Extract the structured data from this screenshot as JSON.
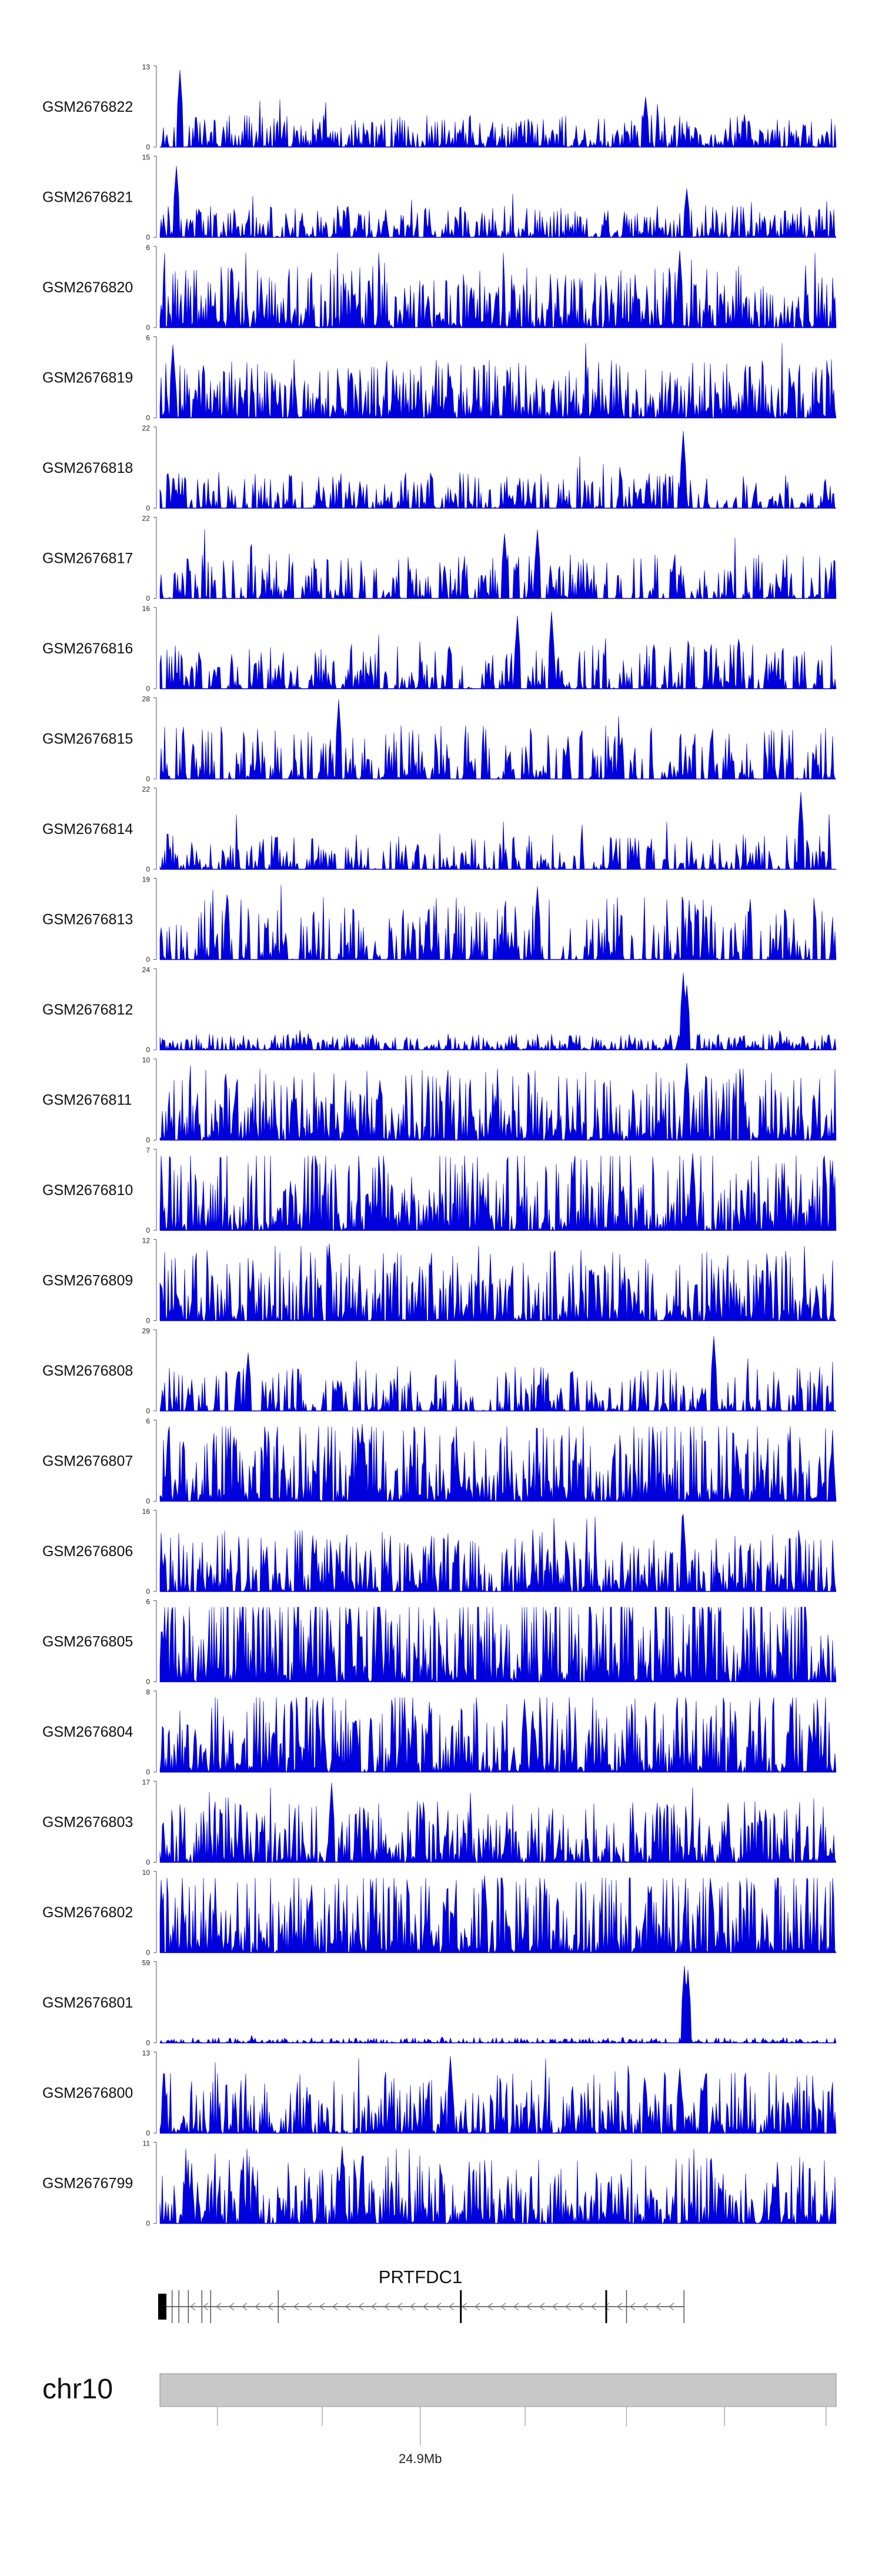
{
  "chart_data": {
    "type": "area",
    "series_color": "#0000dd",
    "tracks": [
      {
        "name": "GSM2676822",
        "ymax": 13,
        "ymin": 0,
        "peaks": [
          [
            0.03,
            0.95
          ],
          [
            0.72,
            0.62
          ]
        ],
        "sparsity": 0.15,
        "base": 0.18
      },
      {
        "name": "GSM2676821",
        "ymax": 15,
        "ymin": 0,
        "peaks": [
          [
            0.025,
            0.88
          ],
          [
            0.78,
            0.6
          ]
        ],
        "sparsity": 0.15,
        "base": 0.18
      },
      {
        "name": "GSM2676820",
        "ymax": 6,
        "ymin": 0,
        "peaks": [
          [
            0.77,
            0.95
          ]
        ],
        "sparsity": 0.0,
        "base": 0.35
      },
      {
        "name": "GSM2676819",
        "ymax": 6,
        "ymin": 0,
        "peaks": [
          [
            0.02,
            0.9
          ]
        ],
        "sparsity": 0.0,
        "base": 0.33
      },
      {
        "name": "GSM2676818",
        "ymax": 22,
        "ymin": 0,
        "peaks": [
          [
            0.776,
            0.95
          ]
        ],
        "sparsity": 0.45,
        "base": 0.2
      },
      {
        "name": "GSM2676817",
        "ymax": 22,
        "ymin": 0,
        "peaks": [
          [
            0.51,
            0.8
          ],
          [
            0.56,
            0.85
          ]
        ],
        "sparsity": 0.55,
        "base": 0.25
      },
      {
        "name": "GSM2676816",
        "ymax": 16,
        "ymin": 0,
        "peaks": [
          [
            0.53,
            0.9
          ],
          [
            0.58,
            0.95
          ]
        ],
        "sparsity": 0.45,
        "base": 0.25
      },
      {
        "name": "GSM2676815",
        "ymax": 28,
        "ymin": 0,
        "peaks": [
          [
            0.265,
            0.98
          ]
        ],
        "sparsity": 0.5,
        "base": 0.3
      },
      {
        "name": "GSM2676814",
        "ymax": 22,
        "ymin": 0,
        "peaks": [
          [
            0.95,
            0.95
          ]
        ],
        "sparsity": 0.45,
        "base": 0.2
      },
      {
        "name": "GSM2676813",
        "ymax": 19,
        "ymin": 0,
        "peaks": [
          [
            0.56,
            0.9
          ],
          [
            0.1,
            0.78
          ]
        ],
        "sparsity": 0.5,
        "base": 0.35
      },
      {
        "name": "GSM2676812",
        "ymax": 24,
        "ymin": 0,
        "peaks": [
          [
            0.775,
            0.95
          ],
          [
            0.78,
            0.8
          ]
        ],
        "sparsity": 0.2,
        "base": 0.09
      },
      {
        "name": "GSM2676811",
        "ymax": 10,
        "ymin": 0,
        "peaks": [
          [
            0.78,
            0.95
          ]
        ],
        "sparsity": 0.1,
        "base": 0.4
      },
      {
        "name": "GSM2676810",
        "ymax": 7,
        "ymin": 0,
        "peaks": [
          [
            0.79,
            0.95
          ]
        ],
        "sparsity": 0.05,
        "base": 0.45
      },
      {
        "name": "GSM2676809",
        "ymax": 12,
        "ymin": 0,
        "peaks": [
          [
            0.25,
            0.95
          ]
        ],
        "sparsity": 0.1,
        "base": 0.4
      },
      {
        "name": "GSM2676808",
        "ymax": 29,
        "ymin": 0,
        "peaks": [
          [
            0.82,
            0.92
          ],
          [
            0.13,
            0.72
          ]
        ],
        "sparsity": 0.45,
        "base": 0.25
      },
      {
        "name": "GSM2676807",
        "ymax": 6,
        "ymin": 0,
        "peaks": [
          [
            0.3,
            0.95
          ]
        ],
        "sparsity": 0.0,
        "base": 0.45
      },
      {
        "name": "GSM2676806",
        "ymax": 16,
        "ymin": 0,
        "peaks": [
          [
            0.775,
            0.95
          ]
        ],
        "sparsity": 0.2,
        "base": 0.35
      },
      {
        "name": "GSM2676805",
        "ymax": 6,
        "ymin": 0,
        "peaks": [
          [
            0.28,
            0.9
          ]
        ],
        "sparsity": 0.0,
        "base": 0.6
      },
      {
        "name": "GSM2676804",
        "ymax": 8,
        "ymin": 0,
        "peaks": [
          [
            0.54,
            0.9
          ]
        ],
        "sparsity": 0.05,
        "base": 0.45
      },
      {
        "name": "GSM2676803",
        "ymax": 17,
        "ymin": 0,
        "peaks": [
          [
            0.255,
            0.98
          ]
        ],
        "sparsity": 0.1,
        "base": 0.35
      },
      {
        "name": "GSM2676802",
        "ymax": 10,
        "ymin": 0,
        "peaks": [
          [
            0.48,
            0.95
          ]
        ],
        "sparsity": 0.1,
        "base": 0.45
      },
      {
        "name": "GSM2676801",
        "ymax": 59,
        "ymin": 0,
        "peaks": [
          [
            0.777,
            0.95
          ],
          [
            0.783,
            0.9
          ]
        ],
        "sparsity": 0.3,
        "base": 0.03
      },
      {
        "name": "GSM2676800",
        "ymax": 13,
        "ymin": 0,
        "peaks": [
          [
            0.43,
            0.95
          ],
          [
            0.77,
            0.8
          ]
        ],
        "sparsity": 0.15,
        "base": 0.35
      },
      {
        "name": "GSM2676799",
        "ymax": 11,
        "ymin": 0,
        "peaks": [
          [
            0.27,
            0.95
          ]
        ],
        "sparsity": 0.1,
        "base": 0.38
      }
    ],
    "gene": {
      "name": "PRTFDC1",
      "strand": "-",
      "exons": [
        0.0,
        0.018,
        0.028,
        0.042,
        0.062,
        0.075,
        0.175,
        0.445,
        0.66,
        0.69,
        0.775
      ]
    },
    "chromosome": {
      "name": "chr10",
      "axis_label": "24.9Mb",
      "label_position": 0.385,
      "ticks": [
        0.085,
        0.24,
        0.385,
        0.54,
        0.69,
        0.835,
        0.985
      ]
    }
  }
}
